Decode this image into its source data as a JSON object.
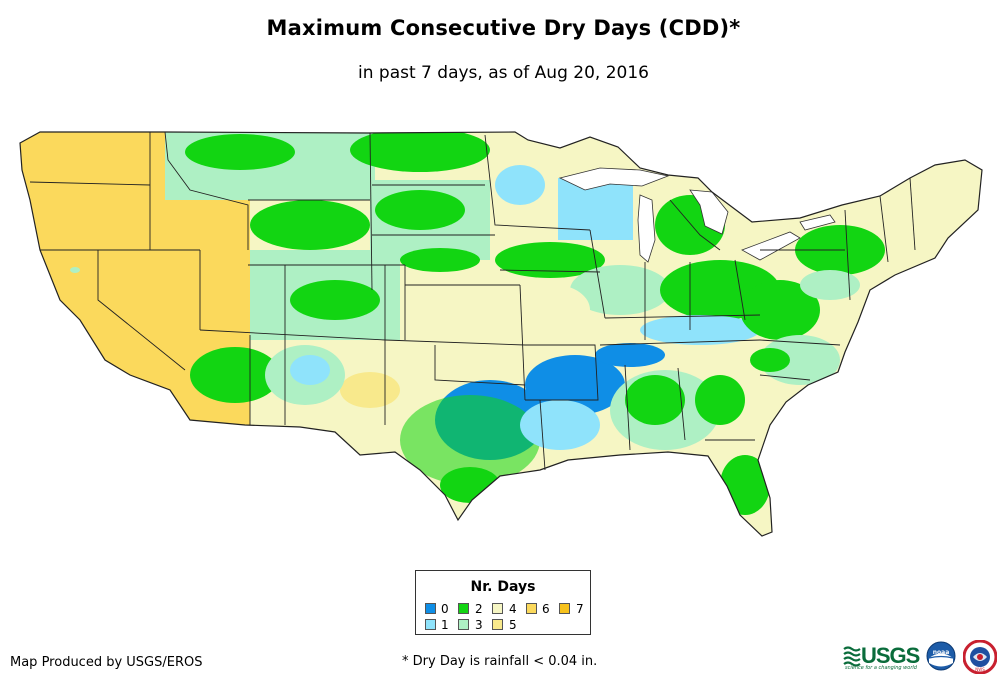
{
  "title": "Maximum Consecutive Dry Days (CDD)*",
  "subtitle": "in past 7 days, as of Aug 20, 2016",
  "legend": {
    "title": "Nr. Days",
    "items": [
      {
        "label": "0",
        "color": "#0f8ee6"
      },
      {
        "label": "1",
        "color": "#8fe3fb"
      },
      {
        "label": "2",
        "color": "#12d512"
      },
      {
        "label": "3",
        "color": "#aef0c4"
      },
      {
        "label": "4",
        "color": "#f6f6c4"
      },
      {
        "label": "5",
        "color": "#f8e98c"
      },
      {
        "label": "6",
        "color": "#fbd95c"
      },
      {
        "label": "7",
        "color": "#f7c21c"
      }
    ]
  },
  "footer": {
    "credit": "Map Produced by USGS/EROS",
    "note": "* Dry Day is rainfall < 0.04 in."
  },
  "logos": {
    "usgs": "USGS",
    "usgs_tagline": "science for a changing world",
    "noaa": "noaa",
    "nws": "NWS"
  }
}
